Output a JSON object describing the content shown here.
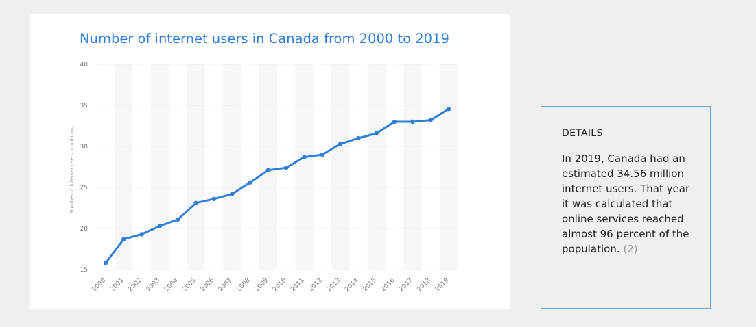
{
  "chart_data": {
    "type": "line",
    "title": "Number of internet users in Canada from 2000 to 2019",
    "ylabel": "Number of internet users in millions",
    "xlabel": "",
    "ylim": [
      15,
      40
    ],
    "yticks": [
      15,
      20,
      25,
      30,
      35,
      40
    ],
    "grid": true,
    "categories": [
      "2000",
      "2001",
      "2002",
      "2003",
      "2004",
      "2005",
      "2006",
      "2007",
      "2008",
      "2009",
      "2010",
      "2011",
      "2012",
      "2013",
      "2014",
      "2015",
      "2016",
      "2017",
      "2018",
      "2019"
    ],
    "series": [
      {
        "color": "#2f7fd6",
        "values": [
          15.8,
          18.7,
          19.3,
          20.3,
          21.1,
          23.1,
          23.6,
          24.2,
          25.6,
          27.1,
          27.4,
          28.7,
          29.0,
          30.3,
          31.0,
          31.6,
          33.0,
          33.0,
          33.2,
          34.56
        ]
      }
    ]
  },
  "details": {
    "heading": "DETAILS",
    "text": "In 2019, Canada had an estimated 34.56 million internet users. That year it was calculated that online services reached almost 96 percent of the population.",
    "ref": "(2)"
  },
  "colors": {
    "accent": "#2f7fd6",
    "details_border": "#6fa6e6",
    "band": "#f6f6f6"
  }
}
